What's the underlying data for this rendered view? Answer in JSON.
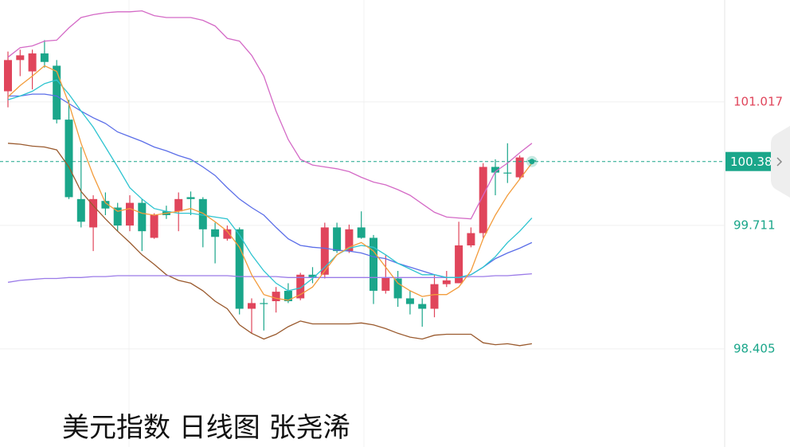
{
  "chart_data": {
    "type": "candlestick",
    "title": "美元指数 日线图 张尧浠",
    "up_color": "#e0455b",
    "down_color": "#1aa68a",
    "ylim": [
      97.368,
      102.095
    ],
    "yticks": [
      98.405,
      99.711,
      101.017
    ],
    "grid": true,
    "open": [
      101.13,
      101.46,
      101.34,
      101.53,
      101.4,
      100.83,
      99.99,
      99.69,
      99.97,
      99.9,
      99.71,
      99.95,
      99.58,
      99.86,
      99.86,
      100.01,
      99.99,
      99.67,
      99.57,
      99.67,
      98.83,
      98.89,
      98.91,
      99.02,
      98.94,
      99.19,
      99.19,
      99.69,
      99.44,
      99.69,
      99.58,
      99.02,
      99.15,
      98.94,
      98.88,
      98.83,
      99.09,
      99.1,
      99.5,
      99.63,
      100.33,
      100.27,
      100.22,
      100.4
    ],
    "high": [
      101.55,
      101.57,
      101.57,
      101.67,
      101.46,
      101.04,
      100.54,
      100.03,
      100.06,
      99.95,
      100.03,
      99.99,
      99.84,
      99.92,
      100.06,
      100.07,
      100.01,
      99.74,
      99.71,
      99.69,
      98.94,
      98.94,
      99.06,
      99.1,
      99.21,
      99.27,
      99.74,
      99.74,
      99.72,
      99.86,
      99.61,
      99.4,
      99.23,
      99.02,
      98.94,
      99.19,
      99.23,
      99.75,
      99.69,
      100.37,
      100.41,
      100.58,
      100.45,
      100.41
    ],
    "low": [
      100.96,
      101.29,
      101.15,
      101.38,
      100.79,
      99.99,
      99.69,
      99.44,
      99.82,
      99.65,
      99.65,
      99.44,
      99.57,
      99.78,
      99.65,
      99.82,
      99.48,
      99.31,
      99.55,
      98.77,
      98.57,
      98.6,
      98.79,
      98.89,
      98.92,
      99.1,
      99.15,
      99.42,
      99.42,
      99.57,
      98.88,
      98.99,
      98.85,
      98.77,
      98.64,
      98.74,
      99.06,
      99.1,
      99.48,
      99.58,
      100.03,
      100.16,
      100.2,
      100.38
    ],
    "close": [
      101.46,
      101.51,
      101.53,
      101.44,
      100.83,
      100.01,
      99.75,
      99.99,
      99.89,
      99.71,
      99.95,
      99.65,
      99.82,
      99.82,
      99.99,
      99.99,
      99.67,
      99.59,
      99.67,
      98.83,
      98.89,
      98.88,
      99.01,
      98.91,
      99.19,
      99.16,
      99.69,
      99.44,
      99.67,
      99.58,
      99.02,
      99.16,
      98.94,
      98.88,
      98.83,
      99.09,
      99.13,
      99.5,
      99.63,
      100.33,
      100.27,
      100.26,
      100.43,
      100.387
    ],
    "series": [
      {
        "color": "#d46ac6",
        "values": [
          101.49,
          101.59,
          101.61,
          101.66,
          101.67,
          101.8,
          101.91,
          101.94,
          101.96,
          101.97,
          101.97,
          101.98,
          101.93,
          101.91,
          101.91,
          101.91,
          101.88,
          101.82,
          101.69,
          101.66,
          101.51,
          101.29,
          100.92,
          100.62,
          100.41,
          100.35,
          100.33,
          100.31,
          100.28,
          100.22,
          100.17,
          100.14,
          100.09,
          100.03,
          99.94,
          99.85,
          99.8,
          99.79,
          99.78,
          100.03,
          100.28,
          100.37,
          100.48,
          100.58
        ]
      },
      {
        "color": "#9a5a2e",
        "values": [
          100.58,
          100.57,
          100.55,
          100.54,
          100.51,
          100.33,
          100.07,
          99.92,
          99.78,
          99.65,
          99.53,
          99.4,
          99.3,
          99.19,
          99.13,
          99.1,
          99.02,
          98.91,
          98.83,
          98.66,
          98.57,
          98.51,
          98.56,
          98.64,
          98.7,
          98.67,
          98.67,
          98.67,
          98.67,
          98.68,
          98.66,
          98.62,
          98.57,
          98.53,
          98.51,
          98.55,
          98.56,
          98.56,
          98.56,
          98.47,
          98.45,
          98.46,
          98.44,
          98.46
        ]
      },
      {
        "color": "#9b7be8",
        "values": [
          99.11,
          99.13,
          99.14,
          99.15,
          99.15,
          99.16,
          99.16,
          99.17,
          99.17,
          99.18,
          99.18,
          99.18,
          99.18,
          99.18,
          99.18,
          99.18,
          99.18,
          99.18,
          99.18,
          99.17,
          99.17,
          99.17,
          99.17,
          99.16,
          99.16,
          99.16,
          99.16,
          99.16,
          99.16,
          99.16,
          99.16,
          99.16,
          99.16,
          99.16,
          99.16,
          99.16,
          99.16,
          99.16,
          99.17,
          99.17,
          99.18,
          99.18,
          99.19,
          99.2
        ]
      },
      {
        "color": "#5b6ee8",
        "values": [
          101.08,
          101.08,
          101.1,
          101.1,
          101.08,
          101.0,
          100.92,
          100.85,
          100.79,
          100.7,
          100.65,
          100.6,
          100.54,
          100.5,
          100.45,
          100.41,
          100.33,
          100.24,
          100.11,
          99.99,
          99.9,
          99.82,
          99.69,
          99.57,
          99.5,
          99.48,
          99.47,
          99.45,
          99.44,
          99.42,
          99.38,
          99.36,
          99.31,
          99.27,
          99.23,
          99.19,
          99.16,
          99.16,
          99.19,
          99.27,
          99.36,
          99.42,
          99.47,
          99.53
        ]
      },
      {
        "color": "#2ec4d0",
        "values": [
          101.04,
          101.08,
          101.13,
          101.21,
          101.25,
          101.1,
          100.92,
          100.75,
          100.54,
          100.33,
          100.11,
          99.99,
          99.89,
          99.86,
          99.84,
          99.84,
          99.82,
          99.8,
          99.78,
          99.61,
          99.4,
          99.23,
          99.1,
          99.02,
          99.05,
          99.15,
          99.27,
          99.4,
          99.47,
          99.5,
          99.48,
          99.4,
          99.31,
          99.25,
          99.19,
          99.19,
          99.16,
          99.16,
          99.19,
          99.27,
          99.38,
          99.53,
          99.65,
          99.79
        ]
      },
      {
        "color": "#f39c3c",
        "values": [
          101.07,
          101.19,
          101.29,
          101.4,
          101.34,
          101.0,
          100.58,
          100.24,
          99.95,
          99.86,
          99.89,
          99.84,
          99.82,
          99.84,
          99.86,
          99.89,
          99.84,
          99.75,
          99.65,
          99.48,
          99.19,
          98.98,
          98.94,
          98.92,
          98.98,
          99.06,
          99.23,
          99.4,
          99.48,
          99.53,
          99.44,
          99.27,
          99.1,
          99.02,
          98.96,
          98.98,
          98.98,
          99.06,
          99.23,
          99.57,
          99.82,
          100.03,
          100.2,
          100.37
        ]
      }
    ]
  }
}
